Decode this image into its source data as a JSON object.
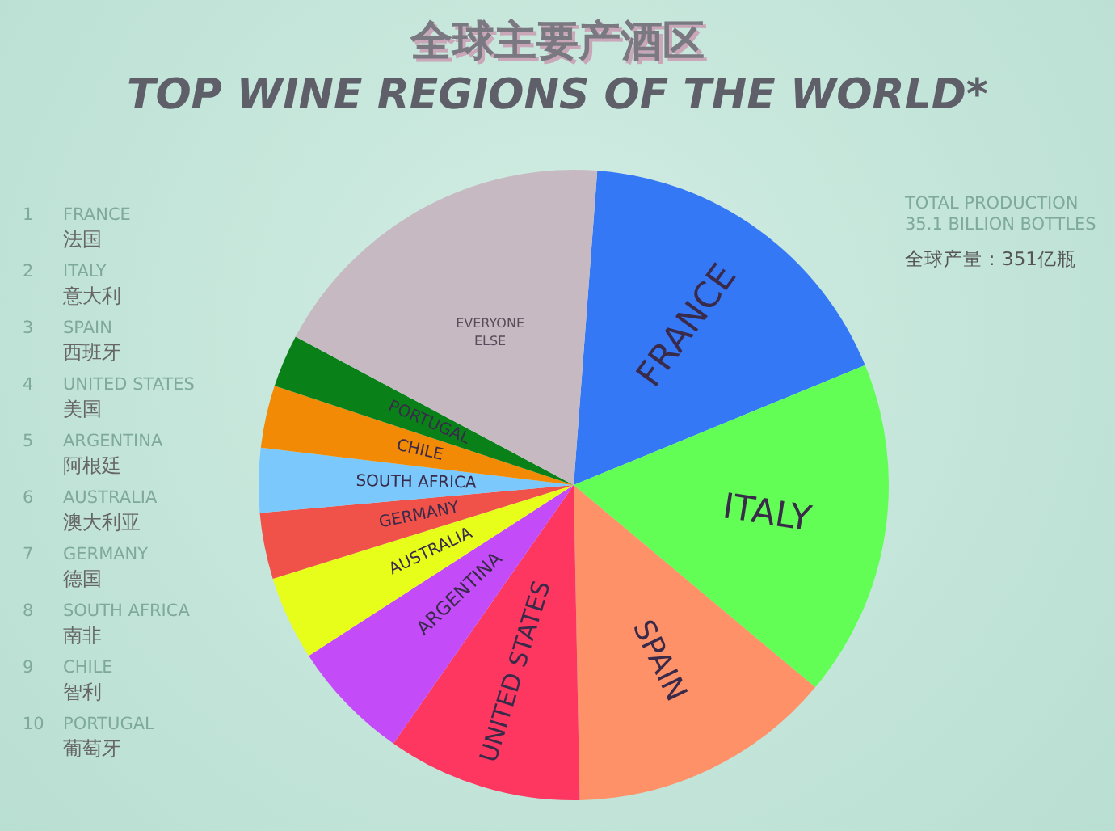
{
  "chart_data": {
    "type": "pie",
    "title": "全球主要产酒区",
    "subtitle": "TOP WINE REGIONS OF THE WORLD*",
    "categories": [
      "FRANCE",
      "ITALY",
      "SPAIN",
      "UNITED STATES",
      "ARGENTINA",
      "AUSTRALIA",
      "GERMANY",
      "SOUTH AFRICA",
      "CHILE",
      "PORTUGAL",
      "EVERYONE ELSE"
    ],
    "values": [
      17.6,
      17.3,
      13.6,
      10.0,
      6.2,
      4.3,
      3.4,
      3.3,
      3.2,
      2.7,
      18.4
    ],
    "colors": [
      "#3478f6",
      "#62fe55",
      "#fe9168",
      "#fe3761",
      "#c44cf8",
      "#e7fe1a",
      "#f0524a",
      "#7bc8fc",
      "#f28a05",
      "#0a8019",
      "#c7b9c2"
    ],
    "annotations": [
      "1",
      "FRANCE",
      "法国",
      "2",
      "ITALY",
      "意大利",
      "3",
      "SPAIN",
      "西班牙",
      "4",
      "UNITED STATES",
      "美国",
      "5",
      "ARGENTINA",
      "阿根廷",
      "6",
      "AUSTRALIA",
      "澳大利亚",
      "7",
      "GERMANY",
      "德国",
      "8",
      "SOUTH AFRICA",
      "南非",
      "9",
      "CHILE",
      "智利",
      "10",
      "PORTUGAL",
      "葡萄牙",
      "TOTAL PRODUCTION",
      "35.1 BILLION BOTTLES",
      "全球产量：351亿瓶"
    ]
  }
}
